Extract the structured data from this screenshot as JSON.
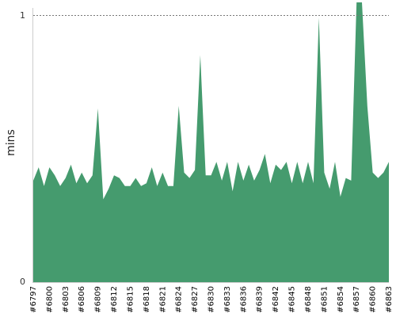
{
  "chart_data": {
    "type": "area",
    "ylabel": "mins",
    "xlabel": "",
    "title": "",
    "ylim": [
      0,
      1
    ],
    "y_ticks": [
      "0",
      "1"
    ],
    "ref_line_value": 1,
    "colors": {
      "area": "#459b6e",
      "grid": "#777777",
      "axis": "#cccccc"
    },
    "tick_labels": [
      "#6797",
      "#6800",
      "#6803",
      "#6806",
      "#6809",
      "#6812",
      "#6815",
      "#6818",
      "#6821",
      "#6824",
      "#6827",
      "#6830",
      "#6833",
      "#6836",
      "#6839",
      "#6842",
      "#6845",
      "#6848",
      "#6851",
      "#6854",
      "#6857",
      "#6860",
      "#6863"
    ],
    "x": [
      6797,
      6798,
      6799,
      6800,
      6801,
      6802,
      6803,
      6804,
      6805,
      6806,
      6807,
      6808,
      6809,
      6810,
      6811,
      6812,
      6813,
      6814,
      6815,
      6816,
      6817,
      6818,
      6819,
      6820,
      6821,
      6822,
      6823,
      6824,
      6825,
      6826,
      6827,
      6828,
      6829,
      6830,
      6831,
      6832,
      6833,
      6834,
      6835,
      6836,
      6837,
      6838,
      6839,
      6840,
      6841,
      6842,
      6843,
      6844,
      6845,
      6846,
      6847,
      6848,
      6849,
      6850,
      6851,
      6852,
      6853,
      6854,
      6855,
      6856,
      6857,
      6858,
      6859,
      6860,
      6861,
      6862,
      6863
    ],
    "values": [
      0.38,
      0.43,
      0.36,
      0.43,
      0.4,
      0.36,
      0.39,
      0.44,
      0.37,
      0.41,
      0.37,
      0.4,
      0.65,
      0.31,
      0.35,
      0.4,
      0.39,
      0.36,
      0.36,
      0.39,
      0.36,
      0.37,
      0.43,
      0.36,
      0.41,
      0.36,
      0.36,
      0.66,
      0.41,
      0.39,
      0.42,
      0.85,
      0.4,
      0.4,
      0.45,
      0.38,
      0.45,
      0.34,
      0.45,
      0.38,
      0.44,
      0.38,
      0.42,
      0.48,
      0.37,
      0.44,
      0.42,
      0.45,
      0.37,
      0.45,
      0.37,
      0.45,
      0.37,
      0.99,
      0.41,
      0.35,
      0.45,
      0.32,
      0.39,
      0.38,
      1.05,
      1.05,
      0.66,
      0.41,
      0.39,
      0.41,
      0.45
    ]
  }
}
